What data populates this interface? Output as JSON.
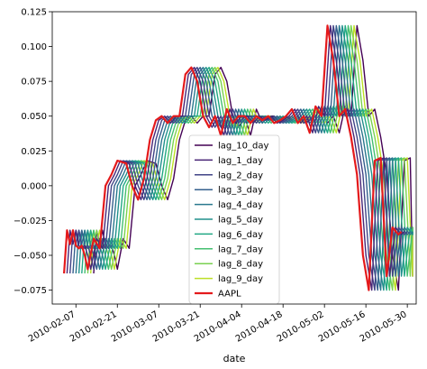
{
  "chart_data": {
    "type": "line",
    "xlabel": "date",
    "ylabel": "",
    "xlim": [
      "2010-01-30",
      "2010-06-02"
    ],
    "ylim": [
      -0.085,
      0.125
    ],
    "x_ticks": [
      "2010-02-07",
      "2010-02-21",
      "2010-03-07",
      "2010-03-21",
      "2010-04-04",
      "2010-04-18",
      "2010-05-02",
      "2010-05-16",
      "2010-05-30"
    ],
    "y_ticks": [
      -0.075,
      -0.05,
      -0.025,
      0.0,
      0.025,
      0.05,
      0.075,
      0.1,
      0.125
    ],
    "y_tick_labels": [
      "−0.075",
      "−0.050",
      "−0.025",
      "0.000",
      "0.025",
      "0.050",
      "0.075",
      "0.100",
      "0.125"
    ],
    "legend_position": "lower-center",
    "grid": false,
    "base_series": {
      "name": "AAPL",
      "x": [
        "2010-02-03",
        "2010-02-04",
        "2010-02-05",
        "2010-02-06",
        "2010-02-07",
        "2010-02-08",
        "2010-02-09",
        "2010-02-10",
        "2010-02-11",
        "2010-02-13",
        "2010-02-15",
        "2010-02-17",
        "2010-02-19",
        "2010-02-21",
        "2010-02-24",
        "2010-02-26",
        "2010-02-28",
        "2010-03-02",
        "2010-03-04",
        "2010-03-06",
        "2010-03-08",
        "2010-03-10",
        "2010-03-12",
        "2010-03-14",
        "2010-03-16",
        "2010-03-18",
        "2010-03-20",
        "2010-03-22",
        "2010-03-24",
        "2010-03-26",
        "2010-03-28",
        "2010-03-30",
        "2010-04-01",
        "2010-04-03",
        "2010-04-05",
        "2010-04-07",
        "2010-04-09",
        "2010-04-11",
        "2010-04-13",
        "2010-04-15",
        "2010-04-17",
        "2010-04-19",
        "2010-04-21",
        "2010-04-23",
        "2010-04-25",
        "2010-04-27",
        "2010-04-29",
        "2010-05-01",
        "2010-05-03",
        "2010-05-05",
        "2010-05-07",
        "2010-05-09",
        "2010-05-11",
        "2010-05-13",
        "2010-05-15",
        "2010-05-17",
        "2010-05-19",
        "2010-05-21",
        "2010-05-23",
        "2010-05-25",
        "2010-05-27",
        "2010-05-28"
      ],
      "y": [
        -0.063,
        -0.032,
        -0.042,
        -0.032,
        -0.043,
        -0.045,
        -0.043,
        -0.05,
        -0.06,
        -0.038,
        -0.045,
        0.0,
        0.008,
        0.018,
        0.016,
        0.0,
        -0.01,
        0.005,
        0.033,
        0.047,
        0.05,
        0.045,
        0.05,
        0.05,
        0.08,
        0.085,
        0.075,
        0.05,
        0.042,
        0.05,
        0.036,
        0.055,
        0.045,
        0.05,
        0.05,
        0.045,
        0.05,
        0.047,
        0.05,
        0.045,
        0.047,
        0.05,
        0.055,
        0.045,
        0.05,
        0.038,
        0.057,
        0.05,
        0.115,
        0.09,
        0.05,
        0.055,
        0.035,
        0.008,
        -0.05,
        -0.075,
        0.018,
        0.02,
        -0.065,
        -0.03,
        -0.035,
        -0.033
      ]
    },
    "series": [
      {
        "name": "lag_10_day",
        "lag_days": 10,
        "color": "#440154"
      },
      {
        "name": "lag_1_day",
        "lag_days": 1,
        "color": "#482475"
      },
      {
        "name": "lag_2_day",
        "lag_days": 2,
        "color": "#414487"
      },
      {
        "name": "lag_3_day",
        "lag_days": 3,
        "color": "#355f8d"
      },
      {
        "name": "lag_4_day",
        "lag_days": 4,
        "color": "#2a788e"
      },
      {
        "name": "lag_5_day",
        "lag_days": 5,
        "color": "#21918c"
      },
      {
        "name": "lag_6_day",
        "lag_days": 6,
        "color": "#22a884"
      },
      {
        "name": "lag_7_day",
        "lag_days": 7,
        "color": "#44bf70"
      },
      {
        "name": "lag_8_day",
        "lag_days": 8,
        "color": "#7ad151"
      },
      {
        "name": "lag_9_day",
        "lag_days": 9,
        "color": "#bddf26"
      },
      {
        "name": "AAPL",
        "lag_days": 0,
        "color": "#e41a1c"
      }
    ]
  }
}
